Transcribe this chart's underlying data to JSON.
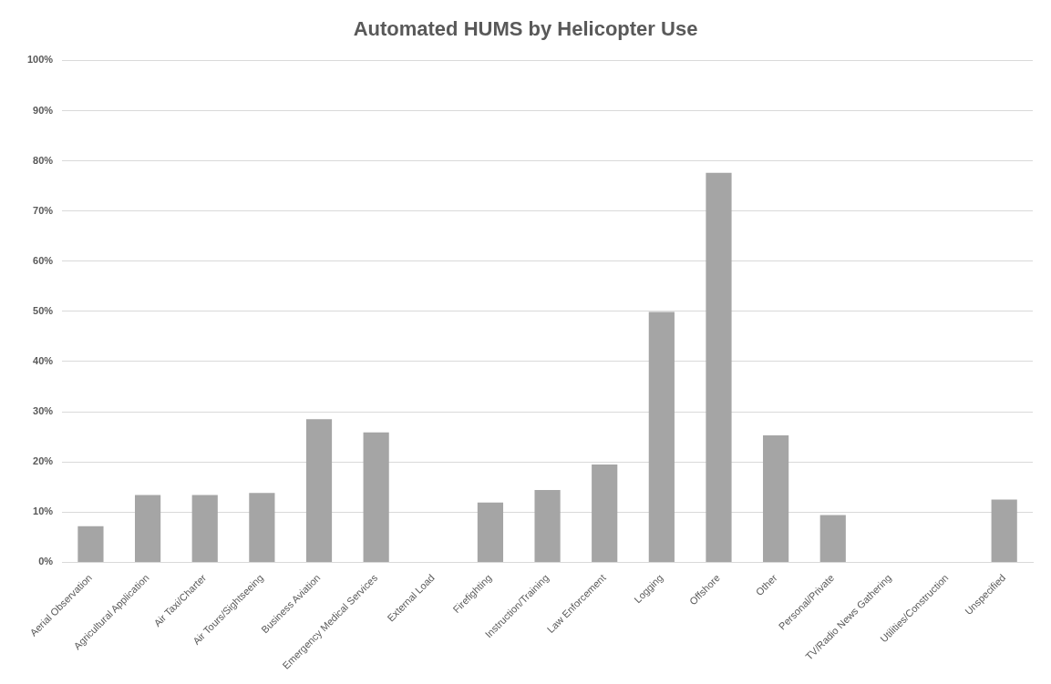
{
  "chart_data": {
    "type": "bar",
    "title": "Automated HUMS by Helicopter Use",
    "categories": [
      "Aerial Observation",
      "Agricultural Application",
      "Air Taxi/Charter",
      "Air Tours/Sightseeing",
      "Business Aviation",
      "Emergency Medical Services",
      "External Load",
      "Firefighting",
      "Instruction/Training",
      "Law Enforcement",
      "Logging",
      "Offshore",
      "Other",
      "Personal/Private",
      "TV/Radio News Gathering",
      "Utilities/Construction",
      "Unspecified"
    ],
    "values": [
      7.2,
      13.4,
      13.4,
      13.8,
      28.5,
      25.9,
      0,
      11.9,
      14.4,
      19.5,
      49.9,
      77.6,
      25.3,
      9.4,
      0,
      0,
      12.5
    ],
    "color": "#a5a5a5",
    "ylim": [
      0,
      100
    ],
    "yticks": [
      {
        "value": 0,
        "label": "0%"
      },
      {
        "value": 10,
        "label": "10%"
      },
      {
        "value": 20,
        "label": "20%"
      },
      {
        "value": 30,
        "label": "30%"
      },
      {
        "value": 40,
        "label": "40%"
      },
      {
        "value": 50,
        "label": "50%"
      },
      {
        "value": 60,
        "label": "60%"
      },
      {
        "value": 70,
        "label": "70%"
      },
      {
        "value": 80,
        "label": "80%"
      },
      {
        "value": 90,
        "label": "90%"
      },
      {
        "value": 100,
        "label": "100%"
      }
    ],
    "grid": "y"
  }
}
